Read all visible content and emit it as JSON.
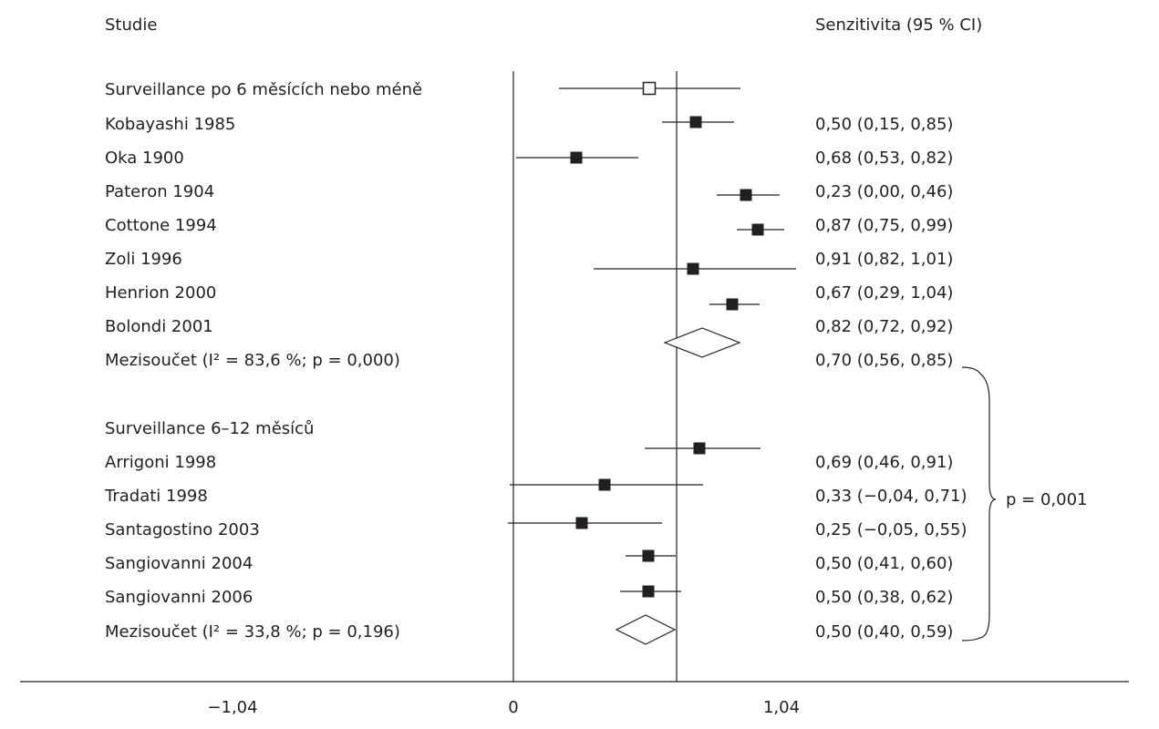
{
  "headers": {
    "study": "Studie",
    "estimate": "Senzitivita (95 % CI)"
  },
  "rows": [
    {
      "label": "Surveillance po 6 měsících nebo méně",
      "value": ""
    },
    {
      "label": "Kobayashi 1985",
      "value": "0,50 (0,15, 0,85)"
    },
    {
      "label": "Oka 1900",
      "value": "0,68 (0,53, 0,82)"
    },
    {
      "label": "Pateron 1904",
      "value": "0,23 (0,00, 0,46)"
    },
    {
      "label": "Cottone 1994",
      "value": "0,87 (0,75, 0,99)"
    },
    {
      "label": "Zoli 1996",
      "value": "0,91 (0,82, 1,01)"
    },
    {
      "label": "Henrion 2000",
      "value": "0,67 (0,29, 1,04)"
    },
    {
      "label": "Bolondi 2001",
      "value": "0,82 (0,72, 0,92)"
    },
    {
      "label": "Mezisoučet (I² = 83,6 %; p = 0,000)",
      "value": "0,70 (0,56, 0,85)"
    },
    {
      "label": "Surveillance 6–12 měsíců",
      "value": ""
    },
    {
      "label": "Arrigoni 1998",
      "value": "0,69 (0,46, 0,91)"
    },
    {
      "label": "Tradati 1998",
      "value": "0,33 (−0,04, 0,71)"
    },
    {
      "label": "Santagostino 2003",
      "value": "0,25 (−0,05, 0,55)"
    },
    {
      "label": "Sangiovanni 2004",
      "value": "0,50 (0,41, 0,60)"
    },
    {
      "label": "Sangiovanni 2006",
      "value": "0,50 (0,38, 0,62)"
    },
    {
      "label": "Mezisoučet (I² = 33,8 %; p = 0,196)",
      "value": "0,50 (0,40, 0,59)"
    }
  ],
  "subgroup_comparison": "p = 0,001",
  "chart_data": {
    "type": "forest",
    "axis_ticks": [
      "−1,04",
      "0",
      "1,04"
    ],
    "xlim": [
      -1.04,
      1.04
    ],
    "reference_line": 0.7,
    "markers": [
      {
        "kind": "open-square",
        "est": 0.5,
        "lo": 0.15,
        "hi": 0.85
      },
      {
        "kind": "square",
        "est": 0.68,
        "lo": 0.53,
        "hi": 0.82
      },
      {
        "kind": "square",
        "est": 0.23,
        "lo": 0.0,
        "hi": 0.46
      },
      {
        "kind": "square",
        "est": 0.87,
        "lo": 0.75,
        "hi": 0.99
      },
      {
        "kind": "square",
        "est": 0.91,
        "lo": 0.82,
        "hi": 1.01
      },
      {
        "kind": "square",
        "est": 0.67,
        "lo": 0.29,
        "hi": 1.04
      },
      {
        "kind": "square",
        "est": 0.82,
        "lo": 0.72,
        "hi": 0.92
      },
      {
        "kind": "diamond",
        "est": 0.7,
        "lo": 0.56,
        "hi": 0.85
      },
      {
        "kind": "none"
      },
      {
        "kind": "square",
        "est": 0.69,
        "lo": 0.46,
        "hi": 0.91
      },
      {
        "kind": "square",
        "est": 0.33,
        "lo": -0.04,
        "hi": 0.71
      },
      {
        "kind": "square",
        "est": 0.25,
        "lo": -0.05,
        "hi": 0.55
      },
      {
        "kind": "square",
        "est": 0.5,
        "lo": 0.41,
        "hi": 0.6
      },
      {
        "kind": "square",
        "est": 0.5,
        "lo": 0.38,
        "hi": 0.62
      },
      {
        "kind": "diamond",
        "est": 0.5,
        "lo": 0.4,
        "hi": 0.59
      },
      {
        "kind": "none"
      }
    ]
  }
}
